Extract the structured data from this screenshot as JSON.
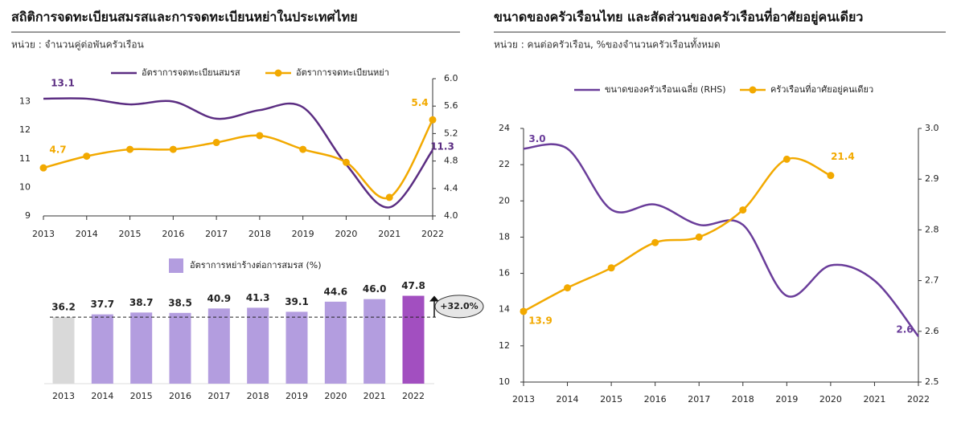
{
  "chart_data": [
    {
      "type": "line",
      "title": "สถิติการจดทะเบียนสมรสและการจดทะเบียนหย่าในประเทศไทย",
      "subtitle": "หน่วย : จำนวนคู่ต่อพันครัวเรือน",
      "categories": [
        "2013",
        "2014",
        "2015",
        "2016",
        "2017",
        "2018",
        "2019",
        "2020",
        "2021",
        "2022"
      ],
      "ylim": [
        9,
        13.8
      ],
      "yticks": [
        9,
        10,
        11,
        12,
        13
      ],
      "y2lim": [
        4.0,
        6.0
      ],
      "y2ticks": [
        {
          "value": 4.0,
          "label": "4.0"
        },
        4.4,
        4.8,
        5.2,
        5.6,
        {
          "value": 6.0,
          "label": "6.0"
        }
      ],
      "series": [
        {
          "name": "อัตราการจดทะเบียนสมรส",
          "color": "#5b2d82",
          "marker": false,
          "values": [
            13.1,
            13.1,
            12.9,
            13.0,
            12.4,
            12.7,
            12.8,
            10.8,
            9.3,
            11.3
          ],
          "value_labels": [
            "13.1",
            null,
            null,
            null,
            null,
            null,
            null,
            null,
            null,
            "11.3"
          ]
        },
        {
          "name": "อัตราการจดทะเบียนหย่า",
          "color": "#f2a900",
          "marker": true,
          "axis": "y2",
          "values": [
            4.7,
            4.87,
            4.97,
            4.97,
            5.07,
            5.17,
            4.97,
            4.78,
            4.27,
            5.4
          ],
          "value_labels": [
            "4.7",
            null,
            null,
            null,
            null,
            null,
            null,
            null,
            null,
            "5.4"
          ]
        }
      ]
    },
    {
      "type": "bar",
      "categories": [
        "2013",
        "2014",
        "2015",
        "2016",
        "2017",
        "2018",
        "2019",
        "2020",
        "2021",
        "2022"
      ],
      "series": [
        {
          "name": "อัตราการหย่าร้างต่อการสมรส (%)",
          "color": "#b39ddf",
          "colors": [
            "#d9d9d9",
            "#b39ddf",
            "#b39ddf",
            "#b39ddf",
            "#b39ddf",
            "#b39ddf",
            "#b39ddf",
            "#b39ddf",
            "#b39ddf",
            "#a24fc0"
          ],
          "values": [
            36.2,
            37.7,
            38.7,
            38.5,
            40.9,
            41.3,
            39.1,
            44.6,
            46.0,
            47.8
          ],
          "value_labels": [
            "36.2",
            "37.7",
            "38.7",
            "38.5",
            "40.9",
            "41.3",
            "39.1",
            "44.6",
            "46.0",
            "47.8"
          ]
        }
      ],
      "annotation": "+32.0%"
    },
    {
      "type": "line",
      "title": "ขนาดของครัวเรือนไทย และสัดส่วนของครัวเรือนที่อาศัยอยู่คนเดียว",
      "subtitle": "หน่วย : คนต่อครัวเรือน, %ของจำนวนครัวเรือนทั้งหมด",
      "categories": [
        "2013",
        "2014",
        "2015",
        "2016",
        "2017",
        "2018",
        "2019",
        "2020",
        "2021",
        "2022"
      ],
      "ylim": [
        10,
        24
      ],
      "yticks": [
        10,
        12,
        14,
        16,
        18,
        20,
        22,
        24
      ],
      "y2lim": [
        2.5,
        3.0
      ],
      "y2ticks": [
        2.5,
        2.6,
        2.7,
        2.8,
        2.9,
        {
          "value": 3.0,
          "label": "3.0"
        }
      ],
      "series": [
        {
          "name": "ขนาดของครัวเรือนเฉลี่ย (RHS)",
          "color": "#6a3d9a",
          "marker": false,
          "axis": "y2",
          "values": [
            2.96,
            2.96,
            2.84,
            2.85,
            2.81,
            2.81,
            2.67,
            2.73,
            2.7,
            2.59
          ],
          "value_labels": [
            "3.0",
            null,
            null,
            null,
            null,
            null,
            null,
            null,
            null,
            "2.6"
          ]
        },
        {
          "name": "ครัวเรือนที่อาศัยอยู่คนเดียว",
          "color": "#f2a900",
          "marker": true,
          "values": [
            13.9,
            15.2,
            16.3,
            17.7,
            18.0,
            19.5,
            22.3,
            21.4,
            null,
            null
          ],
          "value_labels": [
            "13.9",
            null,
            null,
            null,
            null,
            null,
            null,
            "21.4",
            null,
            null
          ]
        }
      ]
    }
  ]
}
